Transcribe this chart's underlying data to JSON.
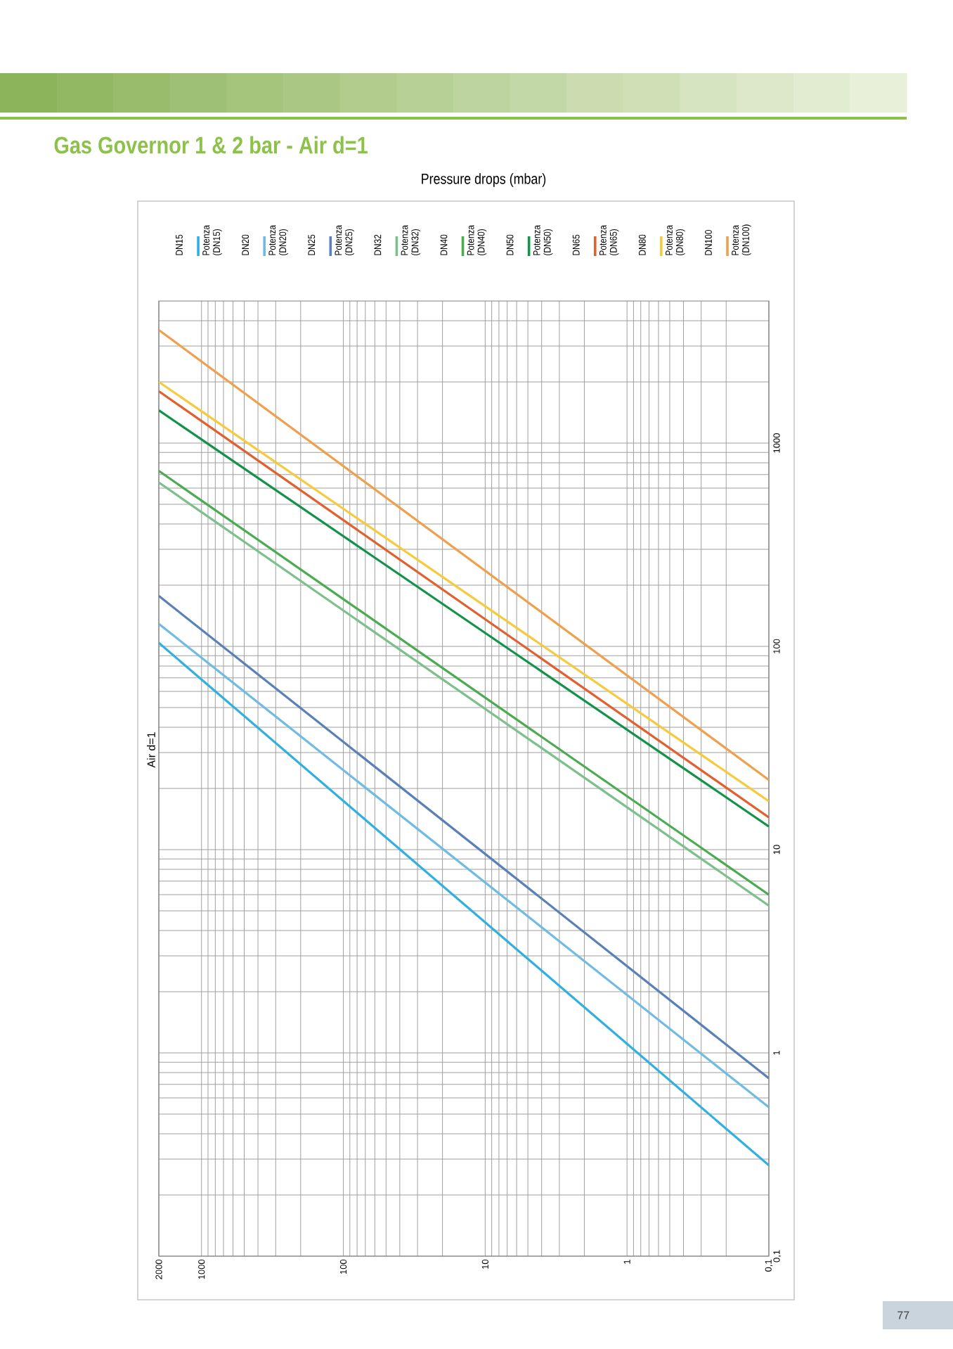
{
  "chart_data": {
    "type": "line",
    "title": "Gas Governor 1 & 2 bar - Air d=1",
    "subtitle": "Pressure drops (mbar)",
    "ylabel": "Air d=1",
    "x": [
      2000,
      0.1
    ],
    "series": [
      {
        "name": "DN15",
        "values": [
          null,
          null
        ]
      },
      {
        "name": "Potenza (DN15)",
        "color": "#2fb0e0",
        "values": [
          104,
          0.28
        ]
      },
      {
        "name": "DN20",
        "values": [
          null,
          null
        ]
      },
      {
        "name": "Potenza (DN20)",
        "color": "#6fbbe3",
        "values": [
          129,
          0.54
        ]
      },
      {
        "name": "DN25",
        "values": [
          null,
          null
        ]
      },
      {
        "name": "Potenza (DN25)",
        "color": "#5a80b8",
        "values": [
          177,
          0.75
        ]
      },
      {
        "name": "DN32",
        "values": [
          null,
          null
        ]
      },
      {
        "name": "Potenza (DN32)",
        "color": "#7cc08c",
        "values": [
          640,
          5.3
        ]
      },
      {
        "name": "DN40",
        "values": [
          null,
          null
        ]
      },
      {
        "name": "Potenza (DN40)",
        "color": "#4aab50",
        "values": [
          730,
          6.0
        ]
      },
      {
        "name": "DN50",
        "values": [
          null,
          null
        ]
      },
      {
        "name": "Potenza (DN50)",
        "color": "#13934a",
        "values": [
          1450,
          13
        ]
      },
      {
        "name": "DN65",
        "values": [
          null,
          null
        ]
      },
      {
        "name": "Potenza (DN65)",
        "color": "#e2602e",
        "values": [
          1800,
          14.4
        ]
      },
      {
        "name": "DN80",
        "values": [
          null,
          null
        ]
      },
      {
        "name": "Potenza (DN80)",
        "color": "#f6ca3c",
        "values": [
          2000,
          17.3
        ]
      },
      {
        "name": "DN100",
        "values": [
          null,
          null
        ]
      },
      {
        "name": "Potenza (DN100)",
        "color": "#f0a04c",
        "values": [
          3600,
          22
        ]
      }
    ],
    "log": "xy",
    "xlim": [
      2000,
      0.1
    ],
    "ylim": [
      0.1,
      5000
    ],
    "xticks": [
      2000,
      1000,
      100,
      10,
      1,
      {
        "value": 0.1,
        "label": "0,1"
      }
    ],
    "yticks": [
      {
        "value": 0.1,
        "label": "0,1"
      },
      1,
      10,
      100,
      1000
    ],
    "grid": true,
    "legend": "top",
    "marker": "none",
    "line_style": "solid",
    "annotations": [
      "77"
    ]
  }
}
